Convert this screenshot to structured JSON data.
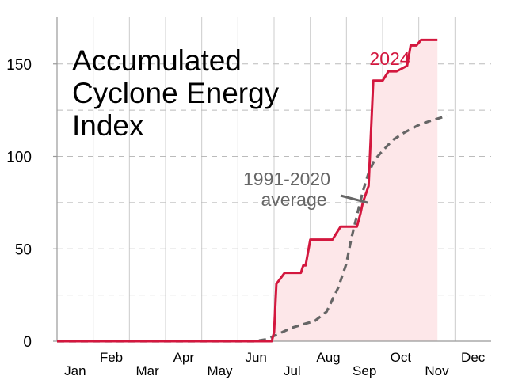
{
  "chart_data": {
    "type": "line",
    "title_lines": [
      "Accumulated",
      "Cyclone Energy",
      "Index"
    ],
    "xlabel": "",
    "ylabel": "",
    "ylim": [
      0,
      170
    ],
    "y_ticks": [
      0,
      50,
      100,
      150
    ],
    "months": [
      "Jan",
      "Feb",
      "Mar",
      "Apr",
      "May",
      "Jun",
      "Jul",
      "Aug",
      "Sep",
      "Oct",
      "Nov",
      "Dec"
    ],
    "grid": {
      "vertical_month_lines": true,
      "horizontal_dashed": true
    },
    "colors": {
      "series_2024": "#d3173e",
      "fill_2024": "#fde7e9",
      "average": "#666666",
      "grid": "#cccccc"
    },
    "series": [
      {
        "name": "2024",
        "style": "solid",
        "x": [
          "Jan 1",
          "Jun 30",
          "Jul 1",
          "Jul 3",
          "Jul 10",
          "Jul 24",
          "Jul 26",
          "Jul 28",
          "Aug 1",
          "Aug 20",
          "Aug 23",
          "Aug 27",
          "Sep 10",
          "Sep 13",
          "Sep 15",
          "Sep 20",
          "Sep 24",
          "Sep 26",
          "Oct 1",
          "Oct 6",
          "Oct 9",
          "Oct 13",
          "Oct 22",
          "Oct 25",
          "Oct 30",
          "Nov 3",
          "Nov 5",
          "Nov 10",
          "Nov 12",
          "Nov 17"
        ],
        "y": [
          0,
          0,
          5,
          31,
          37,
          37,
          41,
          41,
          55,
          55,
          58,
          62,
          62,
          69,
          75,
          84,
          141,
          141,
          141,
          146,
          146,
          146,
          149,
          160,
          160,
          163,
          163,
          163,
          163,
          163
        ]
      },
      {
        "name": "1991-2020 average",
        "label_lines": [
          "1991-2020",
          "average"
        ],
        "style": "dashed",
        "x": [
          "Jan 1",
          "Jun 15",
          "Jun 25",
          "Jul 5",
          "Jul 15",
          "Jul 25",
          "Aug 5",
          "Aug 15",
          "Aug 25",
          "Sep 1",
          "Sep 5",
          "Sep 10",
          "Sep 15",
          "Sep 20",
          "Sep 25",
          "Oct 1",
          "Oct 10",
          "Oct 20",
          "Nov 1",
          "Nov 10",
          "Nov 20",
          "Nov 25"
        ],
        "y": [
          0,
          0,
          1,
          4,
          7,
          9,
          11,
          16,
          29,
          42,
          55,
          68,
          81,
          91,
          98,
          103,
          109,
          113,
          117,
          119,
          121,
          122
        ]
      }
    ]
  }
}
